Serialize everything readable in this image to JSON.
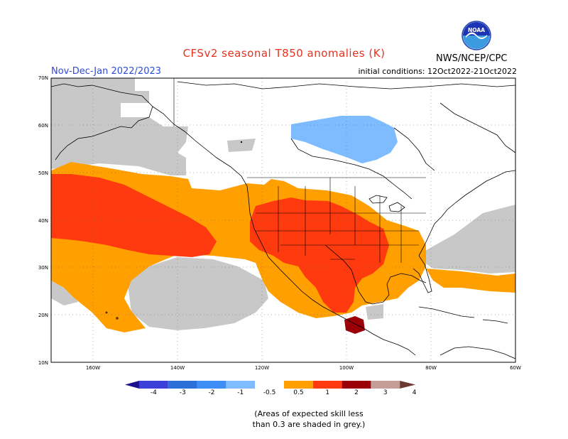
{
  "title": "CFSv2 seasonal T850 anomalies (K)",
  "period": "Nov-Dec-Jan 2022/2023",
  "initial_conditions": "initial conditions: 12Oct2022-21Oct2022",
  "agency": "NWS/NCEP/CPC",
  "logo_text": "NOAA",
  "latitude_labels": [
    "70N",
    "60N",
    "50N",
    "40N",
    "30N",
    "20N",
    "10N"
  ],
  "longitude_labels": [
    "160W",
    "140W",
    "120W",
    "100W",
    "80W",
    "60W"
  ],
  "colorbar_labels": [
    "-4",
    "-3",
    "-2",
    "-1",
    "-0.5",
    "0.5",
    "1",
    "2",
    "3",
    "4"
  ],
  "colorbar_colors": [
    "#1d0f91",
    "#3d3fd9",
    "#2b6fd9",
    "#3d8ff5",
    "#7fbbff",
    "#ffffff",
    "#ff9f00",
    "#ff3a0f",
    "#9b0008",
    "#c49e96",
    "#6b3a30"
  ],
  "legend_note_line1": "(Areas of expected skill less",
  "legend_note_line2": "than 0.3 are shaded in grey.)",
  "chart_data": {
    "type": "heatmap",
    "variable": "T850 anomalies",
    "unit": "K",
    "lat_range": [
      10,
      70
    ],
    "lon_range": [
      -170,
      -60
    ],
    "contour_levels": [
      -4,
      -3,
      -2,
      -1,
      -0.5,
      0.5,
      1,
      2,
      3,
      4
    ],
    "low_skill_shading": "grey",
    "regions": [
      {
        "area": "North Pacific / Gulf of Alaska",
        "anomaly_range": [
          1,
          2
        ]
      },
      {
        "area": "Southwestern US and Northern Mexico",
        "anomaly_range": [
          1,
          2
        ]
      },
      {
        "area": "Southern Plains and Texas",
        "anomaly_range": [
          1,
          2
        ]
      },
      {
        "area": "Gulf coast, Southeast US, Subtropical Pacific",
        "anomaly_range": [
          0.5,
          1
        ]
      },
      {
        "area": "Hudson Bay region",
        "anomaly_range": [
          -1,
          -0.5
        ]
      },
      {
        "area": "Alaska, NE Pacific, Atlantic",
        "skill": "low (grey)"
      }
    ]
  }
}
